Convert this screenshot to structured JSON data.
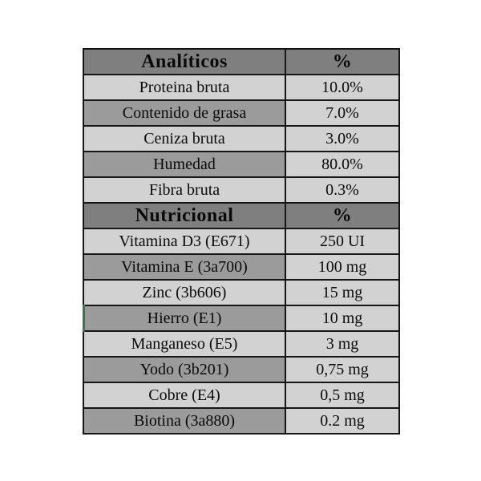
{
  "table": {
    "columns": {
      "label_header_width": "250",
      "value_header_width": "140"
    },
    "sections": [
      {
        "header": {
          "label": "Analíticos",
          "value": "%"
        },
        "rows": [
          {
            "label": "Proteina bruta",
            "value": "10.0%"
          },
          {
            "label": "Contenido de grasa",
            "value": "7.0%"
          },
          {
            "label": "Ceniza bruta",
            "value": "3.0%"
          },
          {
            "label": "Humedad",
            "value": "80.0%"
          },
          {
            "label": "Fibra bruta",
            "value": "0.3%"
          }
        ]
      },
      {
        "header": {
          "label": "Nutricional",
          "value": "%"
        },
        "rows": [
          {
            "label": "Vitamina D3 (E671)",
            "value": "250 UI"
          },
          {
            "label": "Vitamina E (3a700)",
            "value": "100 mg"
          },
          {
            "label": "Zinc (3b606)",
            "value": "15 mg"
          },
          {
            "label": "Hierro (E1)",
            "value": "10 mg",
            "accent": true
          },
          {
            "label": "Manganeso (E5)",
            "value": "3 mg"
          },
          {
            "label": "Yodo (3b201)",
            "value": "0,75 mg"
          },
          {
            "label": "Cobre (E4)",
            "value": "0,5 mg"
          },
          {
            "label": "Biotina (3a880)",
            "value": "0.2 mg"
          }
        ]
      }
    ],
    "colors": {
      "header_bg": "#7f7f7f",
      "row_light_bg": "#d2d2d2",
      "row_dark_bg": "#9b9b9b",
      "border": "#161616",
      "accent_green": "#35774e",
      "text": "#0a0a0a"
    }
  }
}
